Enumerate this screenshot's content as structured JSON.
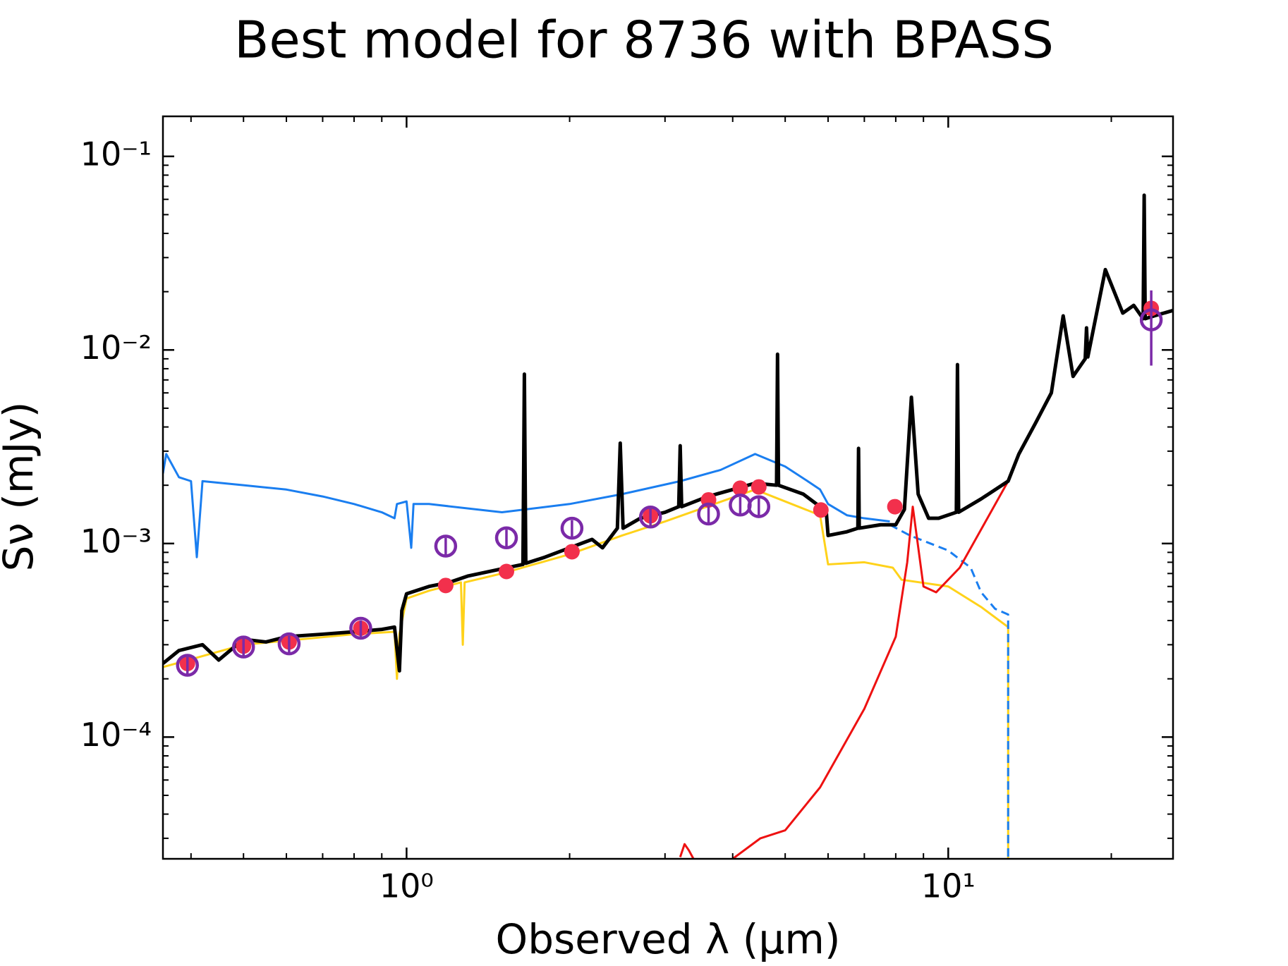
{
  "chart_data": {
    "type": "line",
    "title": "Best model for 8736 with BPASS",
    "xlabel": "Observed λ (μm)",
    "ylabel": "Sν (mJy)",
    "xscale": "log",
    "yscale": "log",
    "xlim": [
      0.355,
      26.0
    ],
    "ylim": [
      2.35e-05,
      0.161
    ],
    "xticks": [
      {
        "value": 1,
        "label": "10⁰"
      },
      {
        "value": 10,
        "label": "10¹"
      }
    ],
    "yticks": [
      {
        "value": 0.0001,
        "label": "10⁻⁴"
      },
      {
        "value": 0.001,
        "label": "10⁻³"
      },
      {
        "value": 0.01,
        "label": "10⁻²"
      },
      {
        "value": 0.1,
        "label": "10⁻¹"
      }
    ],
    "xminorticks": [
      0.4,
      0.5,
      0.6,
      0.7,
      0.8,
      0.9,
      2,
      3,
      4,
      5,
      6,
      7,
      8,
      9,
      20
    ],
    "yminorticks": [
      3e-05,
      4e-05,
      5e-05,
      6e-05,
      7e-05,
      8e-05,
      9e-05,
      0.0002,
      0.0003,
      0.0004,
      0.0005,
      0.0006,
      0.0007,
      0.0008,
      0.0009,
      0.002,
      0.003,
      0.004,
      0.005,
      0.006,
      0.007,
      0.008,
      0.009,
      0.02,
      0.03,
      0.04,
      0.05,
      0.06,
      0.07,
      0.08,
      0.09
    ],
    "series": [
      {
        "type": "line",
        "color": "#1a7ef0",
        "dash": false,
        "width": 3,
        "x": [
          0.355,
          0.36,
          0.38,
          0.4,
          0.41,
          0.42,
          0.5,
          0.6,
          0.7,
          0.8,
          0.9,
          0.95,
          0.96,
          1.0,
          1.02,
          1.03,
          1.1,
          1.5,
          2.0,
          2.5,
          3.2,
          3.8,
          4.4,
          5.0,
          5.5,
          5.8,
          6.0,
          6.5,
          7.0,
          7.8
        ],
        "values": [
          0.0023,
          0.0029,
          0.0022,
          0.0021,
          0.00085,
          0.0021,
          0.002,
          0.0019,
          0.00175,
          0.0016,
          0.00145,
          0.00135,
          0.0016,
          0.00165,
          0.00095,
          0.0016,
          0.0016,
          0.00145,
          0.0016,
          0.0018,
          0.0021,
          0.0024,
          0.0029,
          0.0025,
          0.0021,
          0.0019,
          0.0016,
          0.0014,
          0.00135,
          0.0013
        ]
      },
      {
        "type": "line",
        "color": "#ffd21a",
        "dash": false,
        "width": 3,
        "x": [
          0.355,
          0.5,
          0.8,
          0.95,
          0.96,
          0.97,
          1.0,
          1.1,
          1.26,
          1.27,
          1.28,
          1.5,
          2.0,
          2.5,
          3.0,
          4.4,
          5.8,
          6.0,
          7.0,
          7.9,
          8.2,
          10.0,
          11.5,
          12.9,
          12.9
        ],
        "values": [
          0.00023,
          0.0003,
          0.00034,
          0.00035,
          0.0002,
          0.00034,
          0.00052,
          0.00057,
          0.00063,
          0.0003,
          0.00063,
          0.0007,
          0.00088,
          0.0011,
          0.0013,
          0.0019,
          0.0014,
          0.00078,
          0.0008,
          0.00075,
          0.00065,
          0.0006,
          0.00047,
          0.00037,
          2.35e-05
        ]
      },
      {
        "type": "line",
        "color": "#1a7ef0",
        "dash": true,
        "width": 3,
        "x": [
          7.8,
          8.5,
          10.0,
          11.0,
          11.5,
          12.2,
          12.9,
          12.9
        ],
        "values": [
          0.00125,
          0.0011,
          0.00092,
          0.00075,
          0.00056,
          0.00046,
          0.00043,
          2.35e-05
        ]
      },
      {
        "type": "line",
        "color": "#ee1111",
        "dash": false,
        "width": 3,
        "x": [
          3.2,
          3.26,
          3.32,
          3.4,
          3.7,
          4.0,
          4.5,
          5.0,
          5.8,
          7.0,
          8.0,
          8.4,
          8.6,
          9.0,
          9.5,
          10.5,
          12.9
        ],
        "values": [
          2.4e-05,
          2.8e-05,
          2.6e-05,
          2.3e-05,
          null,
          2.35e-05,
          3e-05,
          3.3e-05,
          5.5e-05,
          0.00014,
          0.00033,
          0.0008,
          0.00155,
          0.0006,
          0.00056,
          0.00075,
          0.0021
        ]
      },
      {
        "type": "line",
        "color": "#000000",
        "dash": false,
        "width": 5,
        "x": [
          0.355,
          0.38,
          0.42,
          0.45,
          0.5,
          0.55,
          0.6,
          0.7,
          0.8,
          0.9,
          0.95,
          0.97,
          0.98,
          1.0,
          1.1,
          1.2,
          1.3,
          1.5,
          1.64,
          1.65,
          1.66,
          1.8,
          2.0,
          2.2,
          2.3,
          2.45,
          2.48,
          2.51,
          2.7,
          3.0,
          3.18,
          3.2,
          3.22,
          3.6,
          4.0,
          4.4,
          4.82,
          4.84,
          4.86,
          5.4,
          5.8,
          5.95,
          6.0,
          6.5,
          6.81,
          6.83,
          6.85,
          7.5,
          8.0,
          8.3,
          8.55,
          8.8,
          9.2,
          9.6,
          10.35,
          10.4,
          10.45,
          11.5,
          12.9,
          13.5,
          14.5,
          15.5,
          16.3,
          17.0,
          17.9,
          18.0,
          18.1,
          19.5,
          21.0,
          22.0,
          22.9,
          23.0,
          23.1,
          24.0,
          26.0
        ],
        "values": [
          0.00024,
          0.00028,
          0.0003,
          0.00025,
          0.00032,
          0.00031,
          0.00033,
          0.00034,
          0.00035,
          0.00036,
          0.00037,
          0.00022,
          0.00045,
          0.00055,
          0.0006,
          0.00063,
          0.00068,
          0.00074,
          0.00078,
          0.0075,
          0.00079,
          0.00085,
          0.00095,
          0.00105,
          0.00095,
          0.0012,
          0.0033,
          0.0012,
          0.00135,
          0.00145,
          0.00155,
          0.0032,
          0.00155,
          0.00175,
          0.0019,
          0.00205,
          0.002,
          0.0095,
          0.002,
          0.0018,
          0.00155,
          0.0015,
          0.0011,
          0.00115,
          0.0012,
          0.0031,
          0.0012,
          0.00125,
          0.00125,
          0.0015,
          0.0057,
          0.0018,
          0.00135,
          0.00135,
          0.00145,
          0.0084,
          0.00145,
          0.0017,
          0.0021,
          0.0029,
          0.0042,
          0.006,
          0.015,
          0.0073,
          0.009,
          0.013,
          0.0092,
          0.026,
          0.0155,
          0.017,
          0.0145,
          0.063,
          0.0145,
          0.015,
          0.016
        ]
      },
      {
        "type": "scatter",
        "color": "#f2304c",
        "marker": "filled",
        "x": [
          0.394,
          0.5,
          0.607,
          0.823,
          1.181,
          1.529,
          2.02,
          2.82,
          3.61,
          4.13,
          4.47,
          5.82,
          7.97,
          23.7
        ],
        "values": [
          0.00024,
          0.000295,
          0.00031,
          0.000365,
          0.000607,
          0.000717,
          0.000907,
          0.00139,
          0.00168,
          0.00193,
          0.00196,
          0.00149,
          0.00155,
          0.0164
        ]
      },
      {
        "type": "scatter",
        "color": "#7b2aa8",
        "marker": "open",
        "x": [
          0.394,
          0.5,
          0.607,
          0.823,
          1.181,
          1.529,
          2.02,
          2.82,
          3.61,
          4.13,
          4.47,
          23.7
        ],
        "values": [
          0.000235,
          0.000292,
          0.000303,
          0.000365,
          0.00097,
          0.00107,
          0.0012,
          0.00137,
          0.00142,
          0.00158,
          0.00155,
          0.0143
        ],
        "errors": [
          2.4e-05,
          3e-05,
          3e-05,
          3.6e-05,
          0.0001,
          0.00011,
          0.00012,
          0.00014,
          0.00014,
          0.00016,
          0.00016,
          0.006
        ]
      }
    ]
  }
}
